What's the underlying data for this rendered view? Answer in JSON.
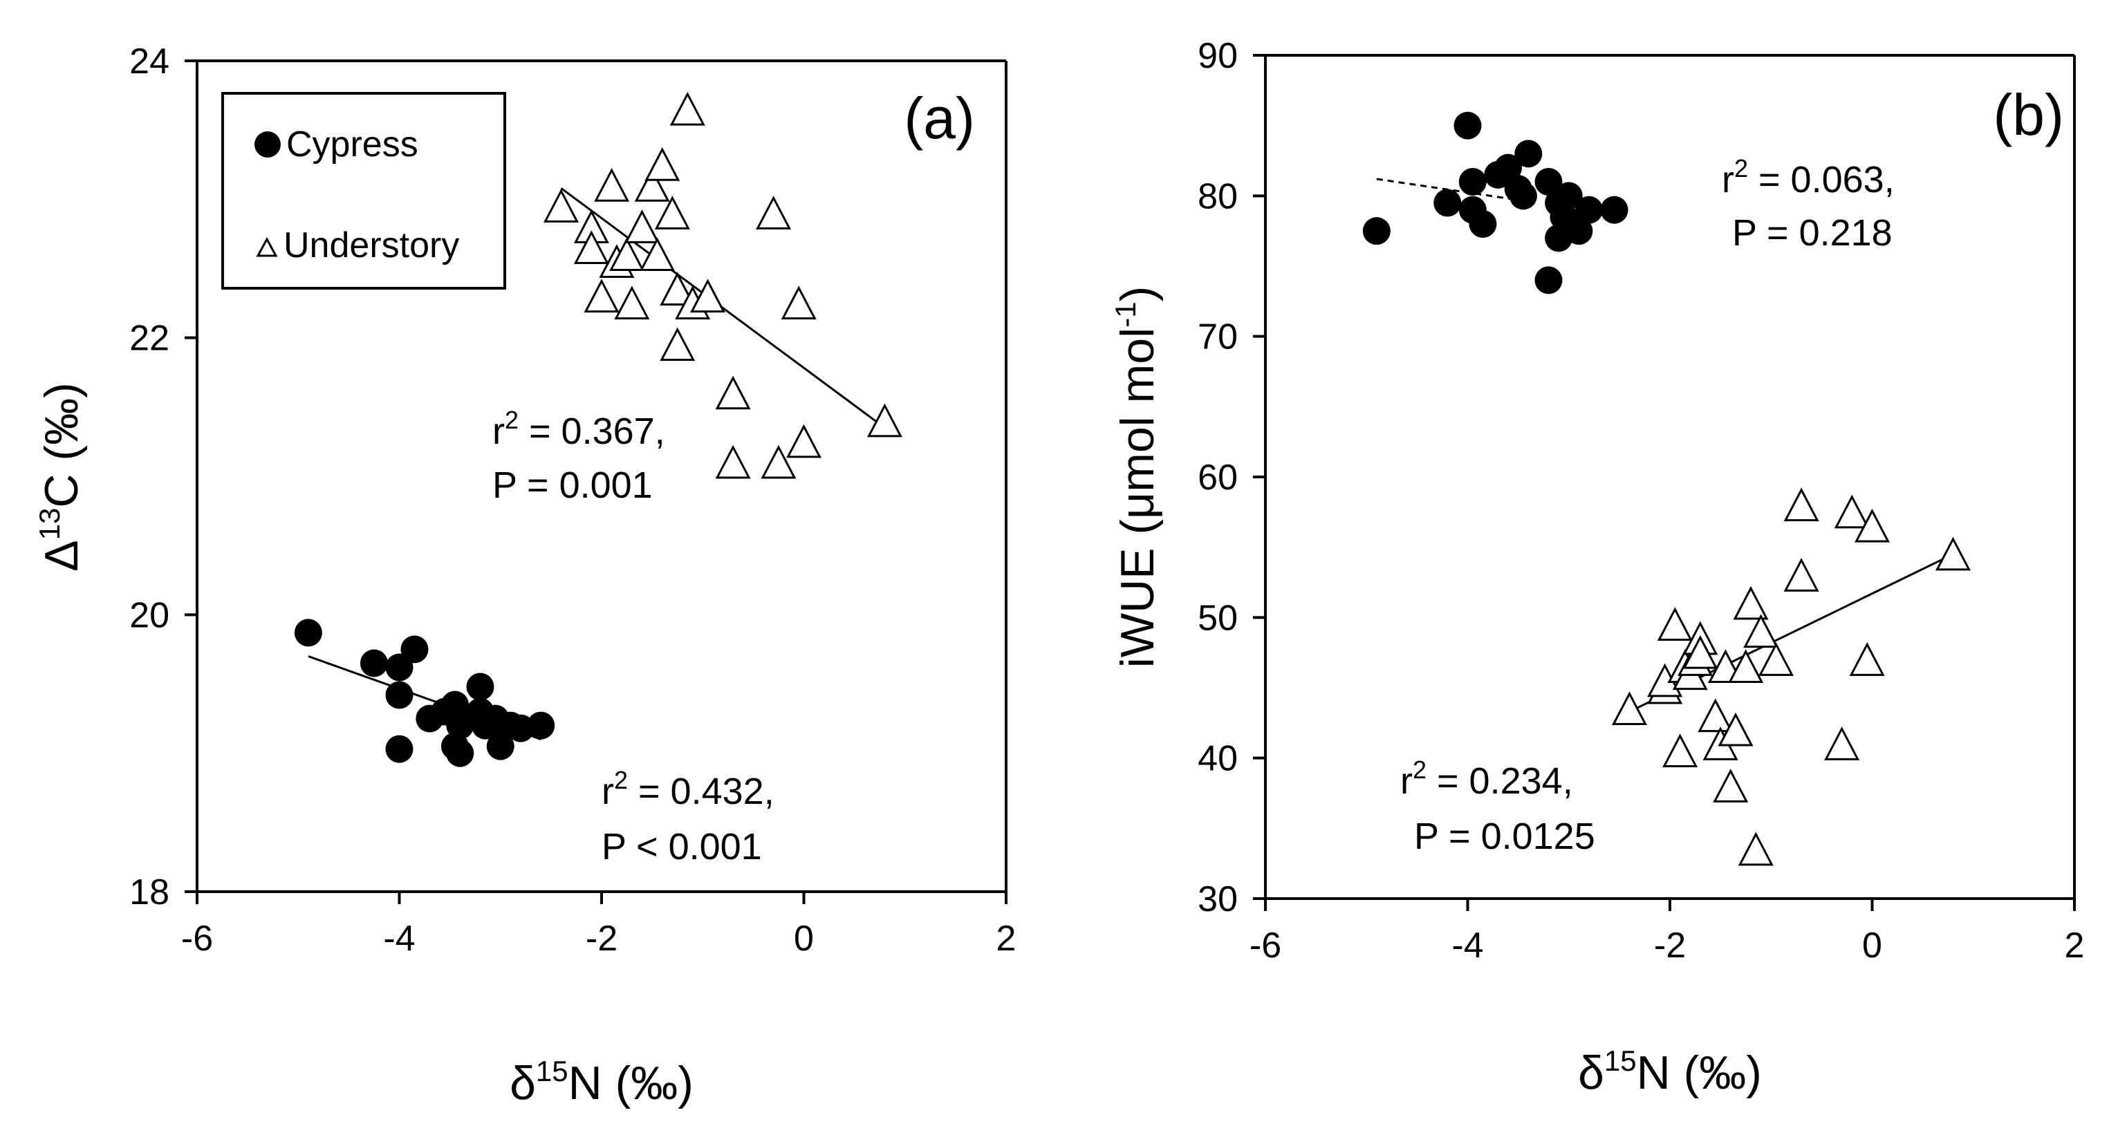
{
  "chart_data": [
    {
      "panel": "(a)",
      "type": "scatter",
      "xlabel": "δ15N (‰)",
      "xlabel_main": "δ",
      "xlabel_sup": "15",
      "xlabel_rest": "N (‰)",
      "ylabel": "Δ13C (‰)",
      "ylabel_main": "Δ",
      "ylabel_sup": "13",
      "ylabel_rest": "C (‰)",
      "xlim": [
        -6,
        2
      ],
      "ylim": [
        18,
        24
      ],
      "xticks": [
        -6,
        -4,
        -2,
        0,
        2
      ],
      "yticks": [
        18,
        20,
        22,
        24
      ],
      "legend": {
        "position": "top-left",
        "entries": [
          {
            "marker": "filled-circle",
            "label": "Cypress"
          },
          {
            "marker": "open-triangle",
            "label": "Understory"
          }
        ]
      },
      "series": [
        {
          "name": "Cypress",
          "marker": "filled-circle",
          "points": [
            [
              -4.9,
              19.87
            ],
            [
              -4.25,
              19.65
            ],
            [
              -4.0,
              19.62
            ],
            [
              -3.85,
              19.75
            ],
            [
              -4.0,
              19.42
            ],
            [
              -4.0,
              19.03
            ],
            [
              -3.7,
              19.25
            ],
            [
              -3.55,
              19.3
            ],
            [
              -3.45,
              19.35
            ],
            [
              -3.4,
              19.2
            ],
            [
              -3.45,
              19.05
            ],
            [
              -3.4,
              19.0
            ],
            [
              -3.2,
              19.48
            ],
            [
              -3.2,
              19.3
            ],
            [
              -3.15,
              19.2
            ],
            [
              -3.05,
              19.25
            ],
            [
              -3.0,
              19.15
            ],
            [
              -3.0,
              19.05
            ],
            [
              -2.9,
              19.2
            ],
            [
              -2.8,
              19.18
            ],
            [
              -2.6,
              19.2
            ]
          ],
          "trendline": {
            "x": [
              -4.9,
              -2.6
            ],
            "y": [
              19.7,
              19.1
            ],
            "style": "solid"
          }
        },
        {
          "name": "Understory",
          "marker": "open-triangle",
          "points": [
            [
              -2.4,
              22.95
            ],
            [
              -2.1,
              22.8
            ],
            [
              -2.1,
              22.65
            ],
            [
              -2.0,
              22.3
            ],
            [
              -1.9,
              23.1
            ],
            [
              -1.85,
              22.55
            ],
            [
              -1.75,
              22.6
            ],
            [
              -1.7,
              22.25
            ],
            [
              -1.6,
              22.8
            ],
            [
              -1.5,
              23.1
            ],
            [
              -1.45,
              22.6
            ],
            [
              -1.4,
              23.25
            ],
            [
              -1.3,
              22.9
            ],
            [
              -1.25,
              22.35
            ],
            [
              -1.25,
              21.95
            ],
            [
              -1.15,
              23.65
            ],
            [
              -1.1,
              22.25
            ],
            [
              -0.95,
              22.3
            ],
            [
              -0.7,
              21.6
            ],
            [
              -0.7,
              21.1
            ],
            [
              -0.3,
              22.9
            ],
            [
              -0.25,
              21.1
            ],
            [
              -0.05,
              22.25
            ],
            [
              0.0,
              21.25
            ],
            [
              0.8,
              21.4
            ]
          ],
          "trendline": {
            "x": [
              -2.4,
              0.8
            ],
            "y": [
              23.08,
              21.35
            ],
            "style": "solid"
          }
        }
      ],
      "annotations": [
        {
          "line1_pre": "r",
          "line1_sup": "2",
          "line1_post": " =  0.367,",
          "line2": "P = 0.001"
        },
        {
          "line1_pre": "r",
          "line1_sup": "2",
          "line1_post": " =  0.432,",
          "line2": "P < 0.001"
        }
      ]
    },
    {
      "panel": "(b)",
      "type": "scatter",
      "xlabel": "δ15N (‰)",
      "xlabel_main": "δ",
      "xlabel_sup": "15",
      "xlabel_rest": "N (‰)",
      "ylabel": "iWUE (μmol mol-1)",
      "ylabel_main": "iWUE (μmol mol",
      "ylabel_sup": "-1",
      "ylabel_rest": ")",
      "xlim": [
        -6,
        2
      ],
      "ylim": [
        30,
        90
      ],
      "xticks": [
        -6,
        -4,
        -2,
        0,
        2
      ],
      "yticks": [
        30,
        40,
        50,
        60,
        70,
        80,
        90
      ],
      "series": [
        {
          "name": "Cypress",
          "marker": "filled-circle",
          "points": [
            [
              -4.9,
              77.5
            ],
            [
              -4.2,
              79.5
            ],
            [
              -4.0,
              85.0
            ],
            [
              -3.95,
              81.0
            ],
            [
              -3.95,
              79.0
            ],
            [
              -3.85,
              78.0
            ],
            [
              -3.7,
              81.5
            ],
            [
              -3.6,
              82.0
            ],
            [
              -3.5,
              80.5
            ],
            [
              -3.45,
              80.0
            ],
            [
              -3.4,
              83.0
            ],
            [
              -3.2,
              81.0
            ],
            [
              -3.2,
              74.0
            ],
            [
              -3.1,
              79.5
            ],
            [
              -3.1,
              77.0
            ],
            [
              -3.05,
              78.5
            ],
            [
              -3.0,
              80.0
            ],
            [
              -2.95,
              78.0
            ],
            [
              -2.9,
              77.5
            ],
            [
              -2.8,
              79.0
            ],
            [
              -2.55,
              79.0
            ]
          ],
          "trendline": {
            "x": [
              -4.9,
              -3.4
            ],
            "y": [
              81.2,
              79.6
            ],
            "style": "dashed"
          }
        },
        {
          "name": "Understory",
          "marker": "open-triangle",
          "points": [
            [
              -2.4,
              43.5
            ],
            [
              -2.05,
              45.0
            ],
            [
              -2.05,
              45.5
            ],
            [
              -1.95,
              49.5
            ],
            [
              -1.9,
              40.5
            ],
            [
              -1.85,
              46.5
            ],
            [
              -1.8,
              46.0
            ],
            [
              -1.75,
              47.0
            ],
            [
              -1.7,
              48.5
            ],
            [
              -1.7,
              47.5
            ],
            [
              -1.55,
              43.0
            ],
            [
              -1.5,
              41.0
            ],
            [
              -1.45,
              46.5
            ],
            [
              -1.4,
              38.0
            ],
            [
              -1.35,
              42.0
            ],
            [
              -1.25,
              46.5
            ],
            [
              -1.2,
              51.0
            ],
            [
              -1.15,
              33.5
            ],
            [
              -1.1,
              49.0
            ],
            [
              -0.95,
              47.0
            ],
            [
              -0.7,
              58.0
            ],
            [
              -0.7,
              53.0
            ],
            [
              -0.3,
              41.0
            ],
            [
              -0.2,
              57.5
            ],
            [
              -0.05,
              47.0
            ],
            [
              0.0,
              56.5
            ],
            [
              0.8,
              54.5
            ]
          ],
          "trendline": {
            "x": [
              -2.4,
              0.8
            ],
            "y": [
              43.3,
              54.5
            ],
            "style": "solid"
          }
        }
      ],
      "annotations": [
        {
          "line1_pre": "r",
          "line1_sup": "2",
          "line1_post": " = 0.063,",
          "line2": "P = 0.218"
        },
        {
          "line1_pre": "r",
          "line1_sup": "2",
          "line1_post": " = 0.234,",
          "line2": "P = 0.0125"
        }
      ]
    }
  ]
}
